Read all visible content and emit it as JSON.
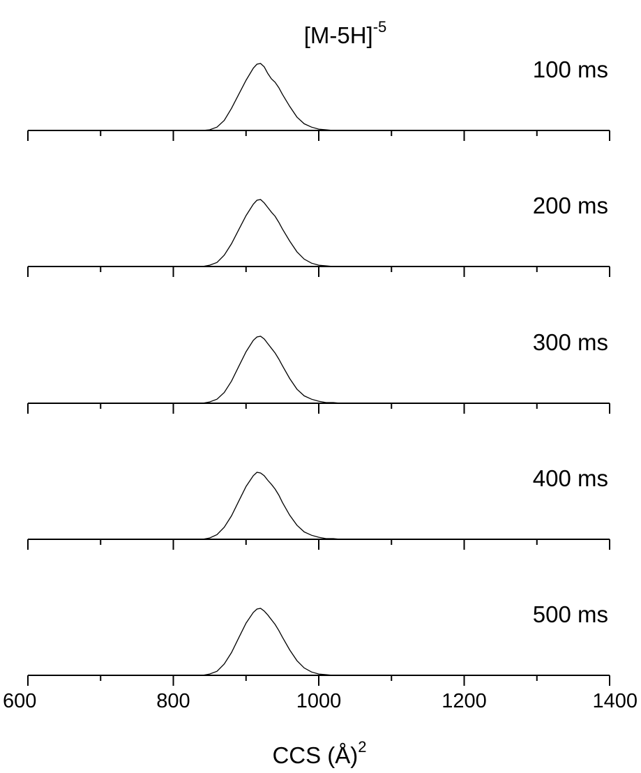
{
  "chart_data": {
    "type": "line",
    "title_main": "[M-5H]",
    "title_sup": "-5",
    "xlabel_main": "CCS (Å)",
    "xlabel_sup": "2",
    "ylabel": "",
    "xlim": [
      600,
      1400
    ],
    "x_major_ticks": [
      600,
      800,
      1000,
      1200,
      1400
    ],
    "x_minor_step": 100,
    "tick_labels": [
      "600",
      "800",
      "1000",
      "1200",
      "1400"
    ],
    "grid": false,
    "ylim": [
      0,
      1.0
    ],
    "x": [
      840,
      850,
      860,
      870,
      880,
      890,
      900,
      910,
      915,
      920,
      925,
      930,
      935,
      940,
      945,
      950,
      960,
      970,
      980,
      990,
      1000,
      1010,
      1020,
      1030,
      1050
    ],
    "series": [
      {
        "name": "100 ms",
        "values": [
          0,
          0.01,
          0.05,
          0.15,
          0.33,
          0.54,
          0.75,
          0.93,
          0.99,
          1.0,
          0.95,
          0.85,
          0.77,
          0.72,
          0.64,
          0.54,
          0.36,
          0.2,
          0.1,
          0.05,
          0.02,
          0.01,
          0,
          0,
          0
        ]
      },
      {
        "name": "200 ms",
        "values": [
          0,
          0.02,
          0.06,
          0.17,
          0.34,
          0.55,
          0.76,
          0.93,
          0.99,
          1.0,
          0.95,
          0.88,
          0.81,
          0.75,
          0.66,
          0.56,
          0.38,
          0.22,
          0.11,
          0.05,
          0.02,
          0.01,
          0,
          0,
          0
        ]
      },
      {
        "name": "300 ms",
        "values": [
          0,
          0.02,
          0.06,
          0.16,
          0.33,
          0.55,
          0.77,
          0.94,
          0.99,
          1.0,
          0.96,
          0.89,
          0.82,
          0.75,
          0.66,
          0.56,
          0.37,
          0.21,
          0.11,
          0.06,
          0.03,
          0.01,
          0.01,
          0,
          0
        ]
      },
      {
        "name": "400 ms",
        "values": [
          0,
          0.02,
          0.07,
          0.18,
          0.35,
          0.57,
          0.79,
          0.95,
          1.0,
          0.99,
          0.95,
          0.88,
          0.82,
          0.75,
          0.66,
          0.55,
          0.36,
          0.21,
          0.11,
          0.06,
          0.03,
          0.01,
          0.01,
          0,
          0
        ]
      },
      {
        "name": "500 ms",
        "values": [
          0,
          0.02,
          0.06,
          0.17,
          0.34,
          0.56,
          0.78,
          0.94,
          0.99,
          1.0,
          0.96,
          0.9,
          0.83,
          0.76,
          0.67,
          0.57,
          0.38,
          0.22,
          0.11,
          0.05,
          0.02,
          0.01,
          0,
          0,
          0
        ]
      }
    ]
  }
}
